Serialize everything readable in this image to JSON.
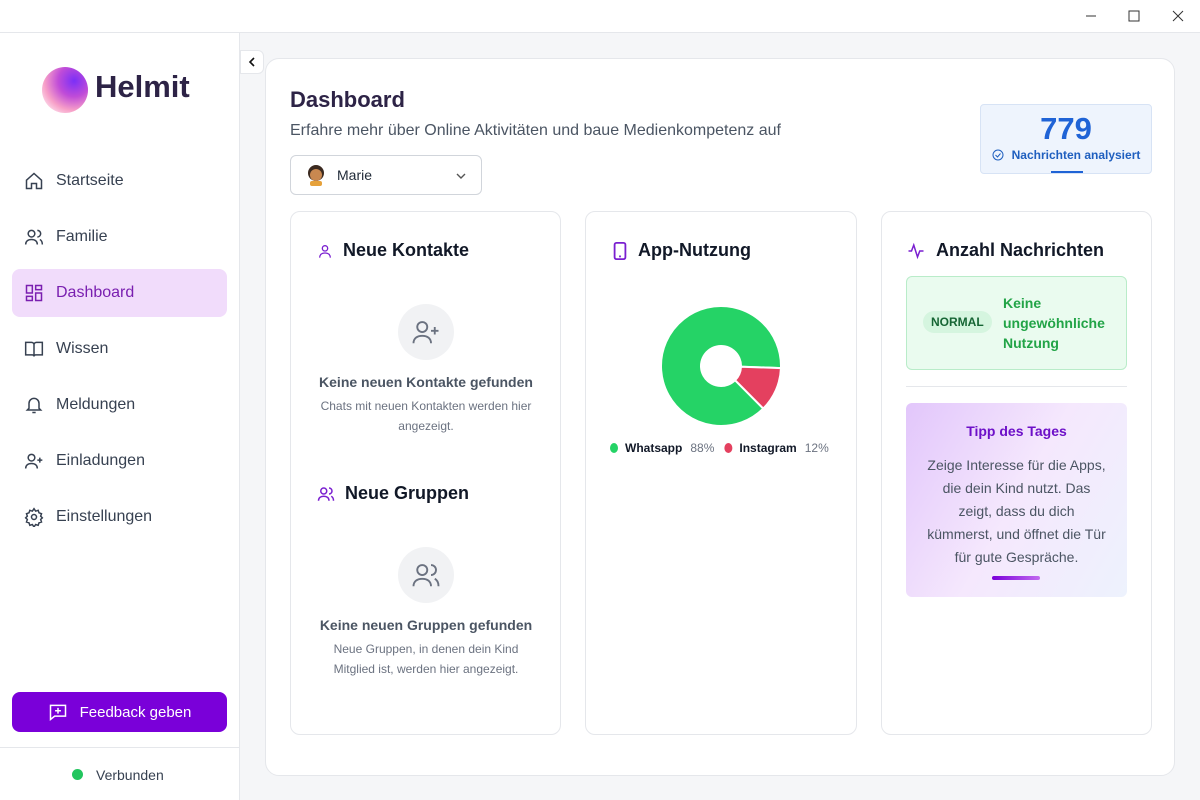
{
  "sidebar": {
    "brand": "Helmit",
    "nav": [
      "Startseite",
      "Familie",
      "Dashboard",
      "Wissen",
      "Meldungen",
      "Einladungen",
      "Einstellungen"
    ],
    "feedback_button": "Feedback geben",
    "status": "Verbunden"
  },
  "header": {
    "title": "Dashboard",
    "subtitle": "Erfahre mehr über Online Aktivitäten und baue Medienkompetenz auf",
    "selected_child": "Marie"
  },
  "stat": {
    "value": 779,
    "label": "Nachrichten analysiert"
  },
  "contacts": {
    "title": "Neue Kontakte",
    "empty_title": "Keine neuen Kontakte gefunden",
    "empty_text": "Chats mit neuen Kontakten werden hier angezeigt."
  },
  "groups": {
    "title": "Neue Gruppen",
    "empty_title": "Keine neuen Gruppen gefunden",
    "empty_text": "Neue Gruppen, in denen dein Kind Mitglied ist, werden hier angezeigt."
  },
  "app_usage": {
    "title": "App-Nutzung",
    "chart": {
      "type": "pie",
      "categories": [
        "Whatsapp",
        "Instagram"
      ],
      "values": [
        88,
        12
      ],
      "value_labels": [
        "88%",
        "12%"
      ],
      "colors": [
        "#25d366",
        "#e4405f"
      ]
    }
  },
  "messages": {
    "title": "Anzahl Nachrichten",
    "badge": "NORMAL",
    "status": "Keine ungewöhnliche Nutzung",
    "tip_title": "Tipp des Tages",
    "tip_text": "Zeige Interesse für die Apps, die dein Kind nutzt. Das zeigt, dass du dich kümmerst, und öffnet die Tür für gute Gespräche."
  }
}
